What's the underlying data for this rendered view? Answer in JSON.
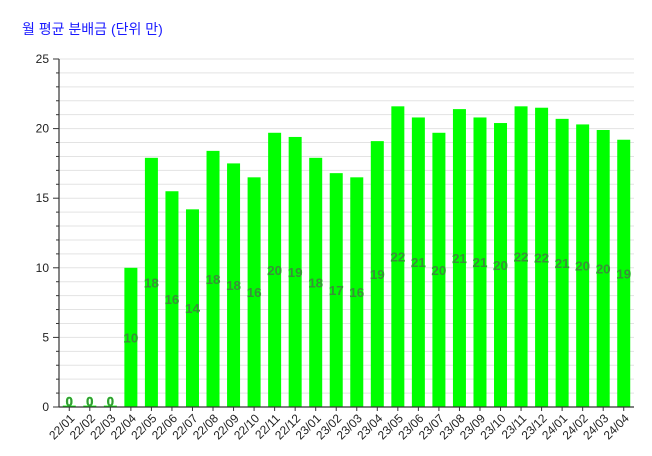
{
  "chart_data": {
    "type": "bar",
    "title": "월 평균 분배금 (단위 만)",
    "xlabel": "",
    "ylabel": "",
    "ylim": [
      0,
      25
    ],
    "y_ticks": [
      0,
      5,
      10,
      15,
      20,
      25
    ],
    "grid": true,
    "bar_color": "#00ff00",
    "label_color": "#3a8f3a",
    "categories": [
      "22/01",
      "22/02",
      "22/03",
      "22/04",
      "22/05",
      "22/06",
      "22/07",
      "22/08",
      "22/09",
      "22/10",
      "22/11",
      "22/12",
      "23/01",
      "23/02",
      "23/03",
      "23/04",
      "23/05",
      "23/06",
      "23/07",
      "23/08",
      "23/09",
      "23/10",
      "23/11",
      "23/12",
      "24/01",
      "24/02",
      "24/03",
      "24/04"
    ],
    "values": [
      0.1,
      0.1,
      0.1,
      10.0,
      17.9,
      15.5,
      14.2,
      18.4,
      17.5,
      16.5,
      19.7,
      19.4,
      17.9,
      16.8,
      16.5,
      19.1,
      21.6,
      20.8,
      19.7,
      21.4,
      20.8,
      20.4,
      21.6,
      21.5,
      20.7,
      20.3,
      19.9,
      19.2
    ],
    "data_labels": [
      "0",
      "0",
      "0",
      "10",
      "18",
      "16",
      "14",
      "18",
      "18",
      "16",
      "20",
      "19",
      "18",
      "17",
      "16",
      "19",
      "22",
      "21",
      "20",
      "21",
      "21",
      "20",
      "22",
      "22",
      "21",
      "20",
      "20",
      "19"
    ]
  }
}
